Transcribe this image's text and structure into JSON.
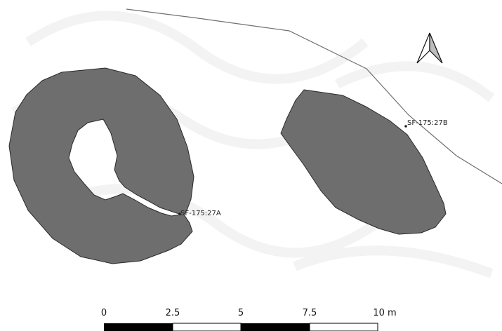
{
  "map": {
    "features": [
      {
        "id": "SF-175:27A",
        "label": "SF-175:27A"
      },
      {
        "id": "SF-175:27B",
        "label": "SF-175:27B"
      }
    ],
    "north_arrow": {
      "icon": "north-arrow-icon"
    },
    "scale_bar": {
      "ticks": [
        "0",
        "2.5",
        "5",
        "7.5",
        "10 m"
      ]
    },
    "colors": {
      "feature_fill": "#6e6e6e",
      "feature_outline": "#2a2a2a",
      "line": "#6f6f6f"
    }
  }
}
